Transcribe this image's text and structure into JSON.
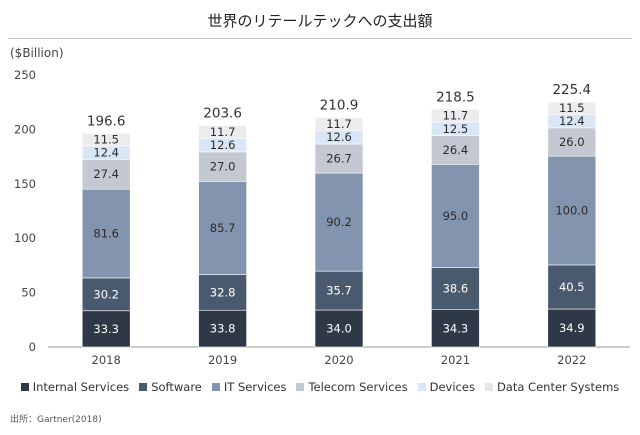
{
  "title": "世界のリテールテックへの支出額",
  "unit_label": "($Billion)",
  "source": "出所：Gartner(2018)",
  "chart_data": {
    "type": "bar",
    "stacked": true,
    "categories": [
      "2018",
      "2019",
      "2020",
      "2021",
      "2022"
    ],
    "ylim": [
      0,
      250
    ],
    "yticks": [
      0,
      50,
      100,
      150,
      200,
      250
    ],
    "grid": false,
    "legend_position": "bottom",
    "totals": [
      "196.6",
      "203.6",
      "210.9",
      "218.5",
      "225.4"
    ],
    "series": [
      {
        "name": "Internal Services",
        "color": "#2e3846",
        "label_color": "#ffffff",
        "values": [
          33.3,
          33.8,
          34.0,
          34.3,
          34.9
        ],
        "labels": [
          "33.3",
          "33.8",
          "34.0",
          "34.3",
          "34.9"
        ]
      },
      {
        "name": "Software",
        "color": "#4a5a6e",
        "label_color": "#ffffff",
        "values": [
          30.2,
          32.8,
          35.7,
          38.6,
          40.5
        ],
        "labels": [
          "30.2",
          "32.8",
          "35.7",
          "38.6",
          "40.5"
        ]
      },
      {
        "name": "IT Services",
        "color": "#8395ae",
        "label_color": "#2b2b2b",
        "values": [
          81.6,
          85.7,
          90.2,
          95.0,
          100.0
        ],
        "labels": [
          "81.6",
          "85.7",
          "90.2",
          "95.0",
          "100.0"
        ]
      },
      {
        "name": "Telecom Services",
        "color": "#c3c8d2",
        "label_color": "#2b2b2b",
        "values": [
          27.4,
          27.0,
          26.7,
          26.4,
          26.0
        ],
        "labels": [
          "27.4",
          "27.0",
          "26.7",
          "26.4",
          "26.0"
        ]
      },
      {
        "name": "Devices",
        "color": "#d9e6f5",
        "label_color": "#2b2b2b",
        "values": [
          12.4,
          12.6,
          12.6,
          12.5,
          12.4
        ],
        "labels": [
          "12.4",
          "12.6",
          "12.6",
          "12.5",
          "12.4"
        ]
      },
      {
        "name": "Data Center Systems",
        "color": "#ececef",
        "label_color": "#2b2b2b",
        "values": [
          11.5,
          11.7,
          11.7,
          11.7,
          11.5
        ],
        "labels": [
          "11.5",
          "11.7",
          "11.7",
          "11.7",
          "11.5"
        ]
      }
    ]
  }
}
